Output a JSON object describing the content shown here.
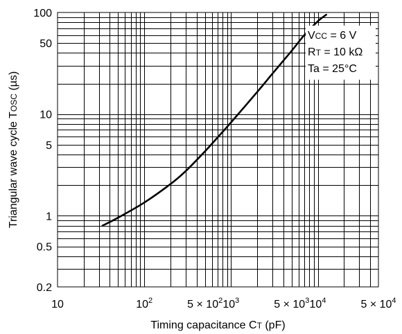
{
  "chart_data": {
    "type": "line",
    "title": "",
    "x_scale": "log",
    "y_scale": "log",
    "xlim": [
      10,
      50000
    ],
    "ylim": [
      0.2,
      100
    ],
    "grid": true,
    "xlabel": {
      "main": "Timing capacitance C",
      "sub": "T",
      "unit": " (pF)"
    },
    "ylabel": {
      "main": "Triangular wave cycle T",
      "sub": "OSC",
      "unit": " (µs)"
    },
    "x_ticks": [
      {
        "value": 10,
        "parts": [
          {
            "t": "10"
          }
        ]
      },
      {
        "value": 100,
        "parts": [
          {
            "t": "10"
          },
          {
            "t": "2",
            "sup": true
          }
        ]
      },
      {
        "value": 500,
        "parts": [
          {
            "t": "5 × 10"
          },
          {
            "t": "2",
            "sup": true
          }
        ]
      },
      {
        "value": 1000,
        "parts": [
          {
            "t": "10"
          },
          {
            "t": "3",
            "sup": true
          }
        ]
      },
      {
        "value": 5000,
        "parts": [
          {
            "t": "5 × 10"
          },
          {
            "t": "3",
            "sup": true
          }
        ]
      },
      {
        "value": 10000,
        "parts": [
          {
            "t": "10"
          },
          {
            "t": "4",
            "sup": true
          }
        ]
      },
      {
        "value": 50000,
        "parts": [
          {
            "t": "5 × 10"
          },
          {
            "t": "4",
            "sup": true
          }
        ]
      }
    ],
    "y_ticks": [
      {
        "value": 100,
        "label": "100"
      },
      {
        "value": 50,
        "label": "50"
      },
      {
        "value": 10,
        "label": "10"
      },
      {
        "value": 5,
        "label": "5"
      },
      {
        "value": 1,
        "label": "1"
      },
      {
        "value": 0.5,
        "label": "0.5"
      },
      {
        "value": 0.2,
        "label": "0.2"
      }
    ],
    "legend_position": "top-right",
    "conditions": [
      {
        "main": "V",
        "sub": "CC",
        "rest": " = 6 V"
      },
      {
        "main": "R",
        "sub": "T",
        "rest": " = 10 kΩ"
      },
      {
        "main": "Ta",
        "sub": "",
        "rest": " = 25°C"
      }
    ],
    "series": [
      {
        "x": [
          33,
          50,
          100,
          200,
          300,
          500,
          700,
          1000,
          2000,
          3000,
          5000,
          7000,
          10000,
          12500
        ],
        "y": [
          0.8,
          0.96,
          1.35,
          2.05,
          2.75,
          4.3,
          5.9,
          8.3,
          16.5,
          25,
          42,
          60,
          82,
          95
        ]
      }
    ]
  }
}
